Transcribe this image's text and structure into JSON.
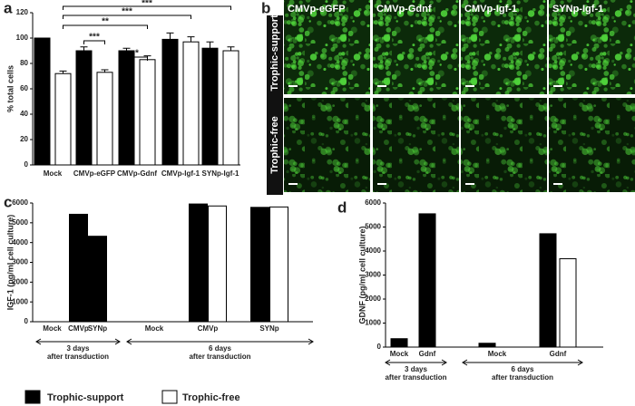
{
  "panels": [
    "a",
    "b",
    "c",
    "d"
  ],
  "chart_data": [
    {
      "type": "bar",
      "ylabel": "% total cells",
      "categories": [
        "Mock",
        "CMVp-eGFP",
        "CMVp-Gdnf",
        "CMVp-Igf-1",
        "SYNp-Igf-1"
      ],
      "series": [
        {
          "color": "#000000",
          "values": [
            100,
            90,
            90,
            99,
            92
          ],
          "errors": [
            0,
            3,
            2,
            5,
            5
          ]
        },
        {
          "color": "#ffffff",
          "values": [
            72,
            73,
            83,
            97,
            90
          ],
          "errors": [
            2,
            2,
            3,
            4,
            3
          ]
        }
      ],
      "ylim": [
        0,
        120
      ],
      "yticks": [
        0,
        20,
        40,
        60,
        80,
        100,
        120
      ],
      "annotations": [
        {
          "label": "***",
          "from": [
            0,
            1
          ],
          "to": [
            4,
            1
          ]
        },
        {
          "label": "***",
          "from": [
            0,
            1
          ],
          "to": [
            3,
            1
          ]
        },
        {
          "label": "**",
          "from": [
            0,
            1
          ],
          "to": [
            2,
            1
          ]
        },
        {
          "label": "***",
          "from": [
            1,
            0
          ],
          "to": [
            1,
            1
          ]
        },
        {
          "label": "*",
          "from": [
            2,
            0
          ],
          "to": [
            2,
            1
          ]
        }
      ]
    },
    {
      "type": "bar",
      "ylabel": "IGF-1 (pg/ml cell culture)",
      "categories": [
        "Mock",
        "CMVp",
        "SYNp",
        "Mock",
        "CMVp",
        "SYNp"
      ],
      "series": [
        {
          "name": "Trophic-support",
          "color": "#000000",
          "values": [
            0,
            5430,
            4320,
            0,
            5950,
            5780
          ]
        },
        {
          "name": "Trophic-free",
          "color": "#ffffff",
          "values": [
            null,
            null,
            null,
            0,
            5850,
            5800
          ]
        }
      ],
      "groups": [
        {
          "label": "3 days",
          "sublabel": "after transduction"
        },
        {
          "label": "6 days",
          "sublabel": "after transduction"
        }
      ],
      "ylim": [
        0,
        6000
      ],
      "yticks": [
        0,
        1000,
        2000,
        3000,
        4000,
        5000,
        6000
      ]
    },
    {
      "type": "bar",
      "ylabel": "GDNF (pg/ml cell culture)",
      "categories": [
        "Mock",
        "Gdnf",
        "Mock",
        "Gdnf"
      ],
      "series": [
        {
          "color": "#000000",
          "values": [
            350,
            5550,
            160,
            4720
          ]
        },
        {
          "color": "#ffffff",
          "values": [
            null,
            null,
            0,
            3680
          ]
        }
      ],
      "groups": [
        {
          "label": "3 days",
          "sublabel": "after transduction"
        },
        {
          "label": "6 days",
          "sublabel": "after transduction"
        }
      ],
      "ylim": [
        0,
        6000
      ],
      "yticks": [
        0,
        1000,
        2000,
        3000,
        4000,
        5000,
        6000
      ]
    }
  ],
  "images": {
    "columns": [
      "CMVp-eGFP",
      "CMVp-Gdnf",
      "CMVp-Igf-1",
      "SYNp-Igf-1"
    ],
    "rows": [
      "Trophic-supported",
      "Trophic-free"
    ]
  }
}
